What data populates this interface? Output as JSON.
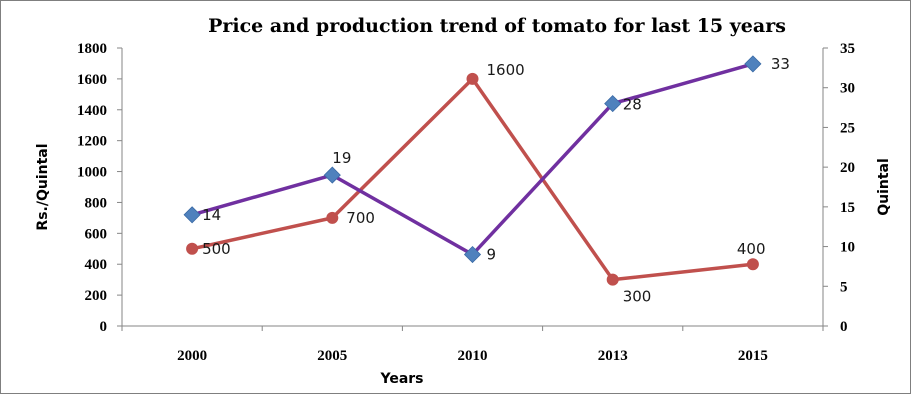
{
  "chart_data": {
    "type": "line",
    "title": "Price and production trend of tomato for last 15 years",
    "xlabel": "Years",
    "ylabel": "Rs./Quintal",
    "y2label": "Quintal",
    "categories": [
      "2000",
      "2005",
      "2010",
      "2013",
      "2015"
    ],
    "ylim": [
      0,
      1800
    ],
    "yticks": [
      0,
      200,
      400,
      600,
      800,
      1000,
      1200,
      1400,
      1600,
      1800
    ],
    "y2lim": [
      0,
      35
    ],
    "y2ticks": [
      0,
      5,
      10,
      15,
      20,
      25,
      30,
      35
    ],
    "grid": false,
    "legend": "none",
    "series": [
      {
        "axis": "left",
        "values": [
          500,
          700,
          1600,
          300,
          400
        ],
        "labels": [
          "500",
          "700",
          "1600",
          "300",
          "400"
        ],
        "color": "#c0504d",
        "marker": "circle"
      },
      {
        "axis": "right",
        "values": [
          14,
          19,
          9,
          28,
          33
        ],
        "labels": [
          "14",
          "19",
          "9",
          "28",
          "33"
        ],
        "color": "#7030a0",
        "marker_color": "#4f81bd",
        "marker": "diamond"
      }
    ]
  }
}
